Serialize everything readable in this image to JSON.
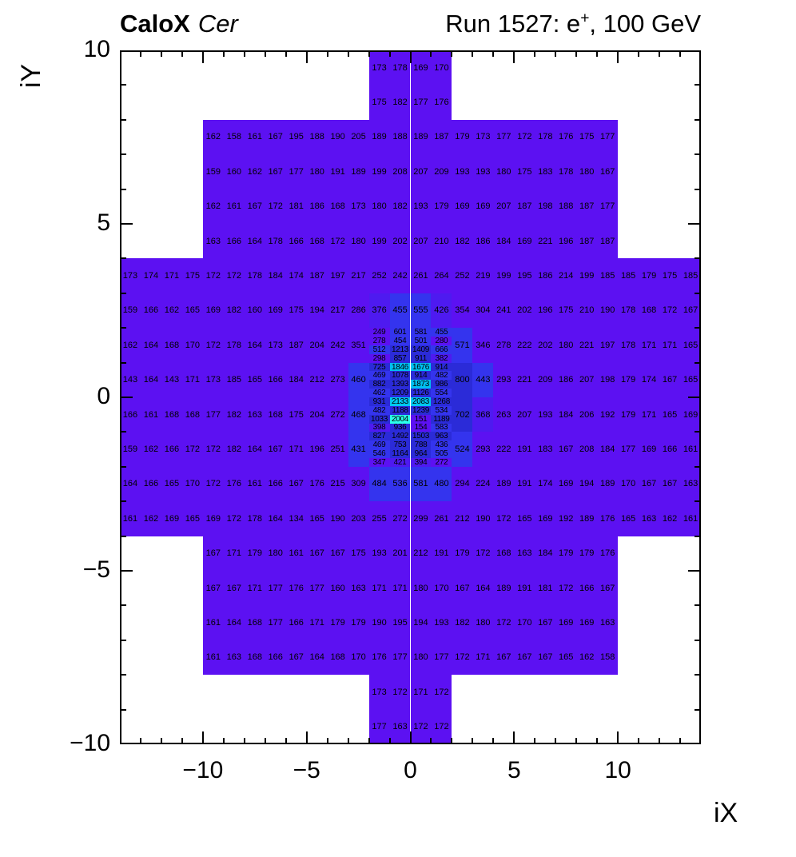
{
  "header": {
    "experiment": "CaloX",
    "detector": "Cer",
    "run_prefix": "Run 1527: e",
    "run_sup": "+",
    "run_suffix": ", 100 GeV"
  },
  "axes": {
    "x": {
      "label": "iX",
      "min": -14,
      "max": 14,
      "major_ticks": [
        -10,
        -5,
        0,
        5,
        10
      ],
      "minor_step": 1
    },
    "y": {
      "label": "iY",
      "min": -10,
      "max": 10,
      "major_ticks": [
        10,
        5,
        0,
        -5,
        -10
      ],
      "minor_step": 1
    }
  },
  "palette": [
    {
      "max": 360,
      "color": "#5c11f2"
    },
    {
      "max": 430,
      "color": "#4e1af0"
    },
    {
      "max": 700,
      "color": "#3434ee"
    },
    {
      "max": 1600,
      "color": "#2b2bd8"
    },
    {
      "max": 1950,
      "color": "#00bff0"
    },
    {
      "max": 2050,
      "color": "#2bffea"
    },
    {
      "max": 1000000,
      "color": "#00c8f0"
    }
  ],
  "chart_data": {
    "type": "heatmap",
    "title": "Run 1527: e+, 100 GeV",
    "subtitle": "CaloX Cer",
    "xlabel": "iX",
    "ylabel": "iY",
    "xlim": [
      -14,
      14
    ],
    "ylim": [
      -10,
      10
    ],
    "grid": false,
    "legend": "none",
    "regions": [
      {
        "name": "top-cross",
        "x0": -2,
        "y_top": 10,
        "cell_w": 1,
        "cell_h": 1,
        "rows": [
          [
            173,
            178,
            169,
            170
          ],
          [
            175,
            182,
            177,
            176
          ]
        ]
      },
      {
        "name": "upper-band",
        "x0": -10,
        "y_top": 8,
        "cell_w": 1,
        "cell_h": 1,
        "rows": [
          [
            162,
            158,
            161,
            167,
            195,
            188,
            190,
            205,
            189,
            188,
            189,
            187,
            179,
            173,
            177,
            172,
            178,
            176,
            175,
            177
          ],
          [
            159,
            160,
            162,
            167,
            177,
            180,
            191,
            189,
            199,
            208,
            207,
            209,
            193,
            193,
            180,
            175,
            183,
            178,
            180,
            167
          ],
          [
            162,
            161,
            167,
            172,
            181,
            186,
            168,
            173,
            180,
            182,
            193,
            179,
            169,
            169,
            207,
            187,
            198,
            188,
            187,
            177
          ],
          [
            163,
            166,
            164,
            178,
            166,
            168,
            172,
            180,
            199,
            202,
            207,
            210,
            182,
            186,
            184,
            169,
            221,
            196,
            187,
            187
          ]
        ]
      },
      {
        "name": "upper-wide",
        "x0": -14,
        "y_top": 4,
        "cell_w": 1,
        "cell_h": 1,
        "rows": [
          [
            173,
            174,
            171,
            175,
            172,
            172,
            178,
            184,
            174,
            187,
            197,
            217,
            252,
            242,
            261,
            264,
            252,
            219,
            199,
            195,
            186,
            214,
            199,
            185,
            185,
            179,
            175,
            185
          ],
          [
            159,
            166,
            162,
            165,
            169,
            182,
            160,
            169,
            175,
            194,
            217,
            286,
            376,
            455,
            555,
            426,
            354,
            304,
            241,
            202,
            196,
            175,
            210,
            190,
            178,
            168,
            172,
            167
          ]
        ]
      },
      {
        "name": "mid-left",
        "x0": -14,
        "y_top": 2,
        "cell_w": 1,
        "cell_h": 1,
        "rows": [
          [
            162,
            164,
            168,
            170,
            172,
            178,
            164,
            173,
            187,
            204,
            242,
            351
          ],
          [
            143,
            164,
            143,
            171,
            173,
            185,
            165,
            166,
            184,
            212,
            273,
            460
          ],
          [
            166,
            161,
            168,
            168,
            177,
            182,
            163,
            168,
            175,
            204,
            272,
            468
          ],
          [
            159,
            162,
            166,
            172,
            172,
            182,
            164,
            167,
            171,
            196,
            251,
            431
          ]
        ]
      },
      {
        "name": "mid-right",
        "x0": 2,
        "y_top": 2,
        "cell_w": 1,
        "cell_h": 1,
        "rows": [
          [
            571,
            346,
            278,
            222,
            202,
            180,
            221,
            197,
            178,
            171,
            171,
            165
          ],
          [
            800,
            443,
            293,
            221,
            209,
            186,
            207,
            198,
            179,
            174,
            167,
            165
          ],
          [
            702,
            368,
            263,
            207,
            193,
            184,
            206,
            192,
            179,
            171,
            165,
            169
          ],
          [
            524,
            293,
            222,
            191,
            183,
            167,
            208,
            184,
            177,
            169,
            166,
            161
          ]
        ]
      },
      {
        "name": "core-fine",
        "x0": -2,
        "y_top": 2,
        "cell_w": 1,
        "cell_h": 0.25,
        "rows": [
          [
            249,
            601,
            581,
            455
          ],
          [
            278,
            454,
            501,
            280
          ],
          [
            512,
            1213,
            1409,
            666
          ],
          [
            298,
            857,
            911,
            382
          ],
          [
            725,
            1846,
            1676,
            914
          ],
          [
            469,
            1078,
            914,
            482
          ],
          [
            882,
            1393,
            1873,
            986
          ],
          [
            462,
            1209,
            1126,
            554
          ],
          [
            931,
            2133,
            2083,
            1268
          ],
          [
            482,
            1188,
            1239,
            534
          ],
          [
            1033,
            2004,
            151,
            1189
          ],
          [
            398,
            936,
            154,
            583
          ],
          [
            827,
            1492,
            1503,
            963
          ],
          [
            469,
            753,
            788,
            436
          ],
          [
            546,
            1164,
            964,
            505
          ],
          [
            347,
            421,
            394,
            272
          ]
        ]
      },
      {
        "name": "lower-wide",
        "x0": -14,
        "y_top": -2,
        "cell_w": 1,
        "cell_h": 1,
        "rows": [
          [
            164,
            166,
            165,
            170,
            172,
            176,
            161,
            166,
            167,
            176,
            215,
            309,
            484,
            536,
            581,
            480,
            294,
            224,
            189,
            191,
            174,
            169,
            194,
            189,
            170,
            167,
            167,
            163
          ],
          [
            161,
            162,
            169,
            165,
            169,
            172,
            178,
            164,
            134,
            165,
            190,
            203,
            255,
            272,
            299,
            261,
            212,
            190,
            172,
            165,
            169,
            192,
            189,
            176,
            165,
            163,
            162,
            161
          ]
        ]
      },
      {
        "name": "lower-band",
        "x0": -10,
        "y_top": -4,
        "cell_w": 1,
        "cell_h": 1,
        "rows": [
          [
            167,
            171,
            179,
            180,
            161,
            167,
            167,
            175,
            193,
            201,
            212,
            191,
            179,
            172,
            168,
            163,
            184,
            179,
            179,
            176
          ],
          [
            167,
            167,
            171,
            177,
            176,
            177,
            160,
            163,
            171,
            171,
            180,
            170,
            167,
            164,
            189,
            191,
            181,
            172,
            166,
            167
          ],
          [
            161,
            164,
            168,
            177,
            166,
            171,
            179,
            179,
            190,
            195,
            194,
            193,
            182,
            180,
            172,
            170,
            167,
            169,
            169,
            163
          ],
          [
            161,
            163,
            168,
            166,
            167,
            164,
            168,
            170,
            176,
            177,
            180,
            177,
            172,
            171,
            167,
            167,
            167,
            165,
            162,
            158
          ]
        ]
      },
      {
        "name": "bottom-cross",
        "x0": -2,
        "y_top": -8,
        "cell_w": 1,
        "cell_h": 1,
        "rows": [
          [
            173,
            172,
            171,
            172
          ],
          [
            177,
            163,
            172,
            172
          ]
        ]
      }
    ]
  }
}
